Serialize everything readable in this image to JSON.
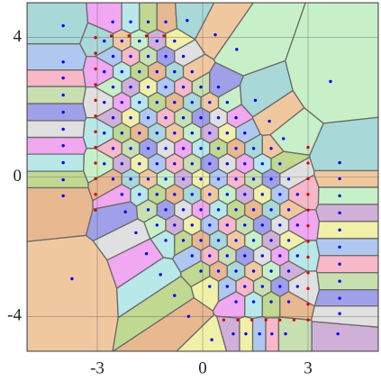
{
  "chart_data": {
    "type": "voronoi",
    "xlim": [
      -5,
      5
    ],
    "ylim": [
      -5,
      5
    ],
    "xticks": [
      -3,
      0,
      3
    ],
    "yticks": [
      4,
      0,
      -4
    ],
    "grid": true,
    "cell_colors": [
      "#a8d8d8",
      "#f0c8a0",
      "#c8f0c8",
      "#d0b0d8",
      "#f0f0a8",
      "#b0c8f0",
      "#f8b8c8",
      "#c8e0b0",
      "#a0a0e8",
      "#e0e0e0",
      "#f0a8f0",
      "#b8e8e8",
      "#c0d890",
      "#e8b890"
    ],
    "series": [
      {
        "color": "#0000ff",
        "cells": true,
        "points": [
          [
            -2.8,
            3.9
          ],
          [
            -2.3,
            3.9
          ],
          [
            -1.8,
            3.9
          ],
          [
            -1.3,
            3.9
          ],
          [
            -0.8,
            3.9
          ],
          [
            -2.55,
            3.46
          ],
          [
            -2.05,
            3.46
          ],
          [
            -1.55,
            3.46
          ],
          [
            -1.05,
            3.46
          ],
          [
            -0.55,
            3.46
          ],
          [
            -2.8,
            3.02
          ],
          [
            -2.3,
            3.02
          ],
          [
            -1.8,
            3.02
          ],
          [
            -1.3,
            3.02
          ],
          [
            -0.8,
            3.02
          ],
          [
            -0.3,
            3.02
          ],
          [
            -2.55,
            2.58
          ],
          [
            -2.05,
            2.58
          ],
          [
            -1.55,
            2.58
          ],
          [
            -1.05,
            2.58
          ],
          [
            -0.55,
            2.58
          ],
          [
            -0.05,
            2.58
          ],
          [
            0.45,
            2.58
          ],
          [
            -2.8,
            2.14
          ],
          [
            -2.3,
            2.14
          ],
          [
            -1.8,
            2.14
          ],
          [
            -1.3,
            2.14
          ],
          [
            -0.8,
            2.14
          ],
          [
            -0.3,
            2.14
          ],
          [
            0.2,
            2.14
          ],
          [
            0.7,
            2.14
          ],
          [
            -2.55,
            1.7
          ],
          [
            -2.05,
            1.7
          ],
          [
            -1.55,
            1.7
          ],
          [
            -1.05,
            1.7
          ],
          [
            -0.55,
            1.7
          ],
          [
            -0.05,
            1.7
          ],
          [
            0.45,
            1.7
          ],
          [
            0.95,
            1.7
          ],
          [
            -2.8,
            1.26
          ],
          [
            -2.3,
            1.26
          ],
          [
            -1.8,
            1.26
          ],
          [
            -1.3,
            1.26
          ],
          [
            -0.8,
            1.26
          ],
          [
            -0.3,
            1.26
          ],
          [
            0.2,
            1.26
          ],
          [
            0.7,
            1.26
          ],
          [
            1.2,
            1.26
          ],
          [
            -2.55,
            0.82
          ],
          [
            -2.05,
            0.82
          ],
          [
            -1.55,
            0.82
          ],
          [
            -1.05,
            0.82
          ],
          [
            -0.55,
            0.82
          ],
          [
            -0.05,
            0.82
          ],
          [
            0.45,
            0.82
          ],
          [
            0.95,
            0.82
          ],
          [
            1.45,
            0.82
          ],
          [
            1.95,
            0.82
          ],
          [
            -2.8,
            0.38
          ],
          [
            -2.3,
            0.38
          ],
          [
            -1.8,
            0.38
          ],
          [
            -1.3,
            0.38
          ],
          [
            -0.8,
            0.38
          ],
          [
            -0.3,
            0.38
          ],
          [
            0.2,
            0.38
          ],
          [
            0.7,
            0.38
          ],
          [
            1.2,
            0.38
          ],
          [
            1.7,
            0.38
          ],
          [
            2.2,
            0.38
          ],
          [
            -2.55,
            -0.06
          ],
          [
            -2.05,
            -0.06
          ],
          [
            -1.55,
            -0.06
          ],
          [
            -1.05,
            -0.06
          ],
          [
            -0.55,
            -0.06
          ],
          [
            -0.05,
            -0.06
          ],
          [
            0.45,
            -0.06
          ],
          [
            0.95,
            -0.06
          ],
          [
            1.45,
            -0.06
          ],
          [
            1.95,
            -0.06
          ],
          [
            2.45,
            -0.06
          ],
          [
            -2.3,
            -0.5
          ],
          [
            -1.8,
            -0.5
          ],
          [
            -1.3,
            -0.5
          ],
          [
            -0.8,
            -0.5
          ],
          [
            -0.3,
            -0.5
          ],
          [
            0.2,
            -0.5
          ],
          [
            0.7,
            -0.5
          ],
          [
            1.2,
            -0.5
          ],
          [
            1.7,
            -0.5
          ],
          [
            2.2,
            -0.5
          ],
          [
            2.7,
            -0.5
          ],
          [
            -1.55,
            -0.94
          ],
          [
            -1.05,
            -0.94
          ],
          [
            -0.55,
            -0.94
          ],
          [
            -0.05,
            -0.94
          ],
          [
            0.45,
            -0.94
          ],
          [
            0.95,
            -0.94
          ],
          [
            1.45,
            -0.94
          ],
          [
            1.95,
            -0.94
          ],
          [
            2.45,
            -0.94
          ],
          [
            -1.3,
            -1.38
          ],
          [
            -0.8,
            -1.38
          ],
          [
            -0.3,
            -1.38
          ],
          [
            0.2,
            -1.38
          ],
          [
            0.7,
            -1.38
          ],
          [
            1.2,
            -1.38
          ],
          [
            1.7,
            -1.38
          ],
          [
            2.2,
            -1.38
          ],
          [
            2.7,
            -1.38
          ],
          [
            -1.05,
            -1.82
          ],
          [
            -0.55,
            -1.82
          ],
          [
            -0.05,
            -1.82
          ],
          [
            0.45,
            -1.82
          ],
          [
            0.95,
            -1.82
          ],
          [
            1.45,
            -1.82
          ],
          [
            1.95,
            -1.82
          ],
          [
            2.45,
            -1.82
          ],
          [
            -0.3,
            -2.26
          ],
          [
            0.2,
            -2.26
          ],
          [
            0.7,
            -2.26
          ],
          [
            1.2,
            -2.26
          ],
          [
            1.7,
            -2.26
          ],
          [
            2.2,
            -2.26
          ],
          [
            2.7,
            -2.26
          ],
          [
            -0.05,
            -2.7
          ],
          [
            0.45,
            -2.7
          ],
          [
            0.95,
            -2.7
          ],
          [
            1.45,
            -2.7
          ],
          [
            1.95,
            -2.7
          ],
          [
            2.45,
            -2.7
          ],
          [
            0.2,
            -3.14
          ],
          [
            0.7,
            -3.14
          ],
          [
            1.2,
            -3.14
          ],
          [
            1.7,
            -3.14
          ],
          [
            2.2,
            -3.14
          ],
          [
            2.7,
            -3.14
          ],
          [
            0.95,
            -3.58
          ],
          [
            1.45,
            -3.58
          ],
          [
            1.95,
            -3.58
          ],
          [
            2.45,
            -3.58
          ],
          [
            -3.97,
            4.34
          ],
          [
            -3.72,
            -2.92
          ],
          [
            3.64,
            2.74
          ],
          [
            3.85,
            -4.5
          ],
          [
            0.26,
            -4.67
          ],
          [
            -3.97,
            3.3
          ],
          [
            -3.97,
            2.84
          ],
          [
            -3.97,
            2.35
          ],
          [
            -3.97,
            1.86
          ],
          [
            -3.97,
            1.37
          ],
          [
            -3.97,
            0.9
          ],
          [
            -3.97,
            0.41
          ],
          [
            -3.97,
            -0.08
          ],
          [
            -3.97,
            -0.54
          ],
          [
            3.9,
            0.41
          ],
          [
            3.9,
            -0.05
          ],
          [
            3.9,
            -0.54
          ],
          [
            3.9,
            -1.03
          ],
          [
            3.9,
            -1.52
          ],
          [
            3.9,
            -2.01
          ],
          [
            3.9,
            -2.5
          ],
          [
            3.9,
            -2.99
          ],
          [
            3.9,
            -3.48
          ],
          [
            3.9,
            -3.92
          ],
          [
            -2.56,
            4.45
          ],
          [
            -2.05,
            4.45
          ],
          [
            -1.55,
            4.45
          ],
          [
            -1.05,
            4.45
          ],
          [
            -0.44,
            4.49
          ],
          [
            0.36,
            4.08
          ],
          [
            0.97,
            3.66
          ],
          [
            0.87,
            -4.5
          ],
          [
            1.23,
            -4.5
          ],
          [
            1.62,
            -4.5
          ],
          [
            1.97,
            -4.5
          ],
          [
            2.36,
            -4.5
          ],
          [
            -2.2,
            -1.0
          ],
          [
            -1.9,
            -1.6
          ],
          [
            -1.6,
            -2.2
          ],
          [
            -1.2,
            -2.8
          ],
          [
            -0.8,
            -3.4
          ],
          [
            -0.4,
            -4.0
          ],
          [
            1.5,
            2.2
          ],
          [
            1.9,
            1.6
          ],
          [
            2.3,
            1.1
          ]
        ]
      },
      {
        "color": "#e00000",
        "points": [
          [
            -3.05,
            4.0
          ],
          [
            -3.05,
            3.55
          ],
          [
            -3.05,
            3.1
          ],
          [
            -3.05,
            2.65
          ],
          [
            -3.05,
            2.2
          ],
          [
            -3.05,
            1.75
          ],
          [
            -3.05,
            1.3
          ],
          [
            -3.05,
            0.85
          ],
          [
            -3.05,
            0.4
          ],
          [
            -3.05,
            -0.05
          ],
          [
            -3.05,
            -0.5
          ],
          [
            -3.05,
            -0.95
          ],
          [
            3.0,
            0.85
          ],
          [
            3.0,
            0.4
          ],
          [
            3.0,
            -0.05
          ],
          [
            3.0,
            -0.5
          ],
          [
            3.0,
            -0.95
          ],
          [
            3.0,
            -1.4
          ],
          [
            3.0,
            -1.85
          ],
          [
            3.0,
            -2.3
          ],
          [
            3.0,
            -2.75
          ],
          [
            3.0,
            -3.2
          ],
          [
            3.0,
            -3.65
          ],
          [
            3.0,
            -4.1
          ],
          [
            -2.6,
            4.05
          ],
          [
            -2.1,
            4.05
          ],
          [
            -1.6,
            4.05
          ],
          [
            -1.1,
            4.05
          ],
          [
            0.6,
            -4.1
          ],
          [
            1.0,
            -4.1
          ],
          [
            1.4,
            -4.1
          ],
          [
            1.8,
            -4.1
          ],
          [
            2.2,
            -4.1
          ],
          [
            2.6,
            -4.1
          ]
        ]
      }
    ]
  }
}
